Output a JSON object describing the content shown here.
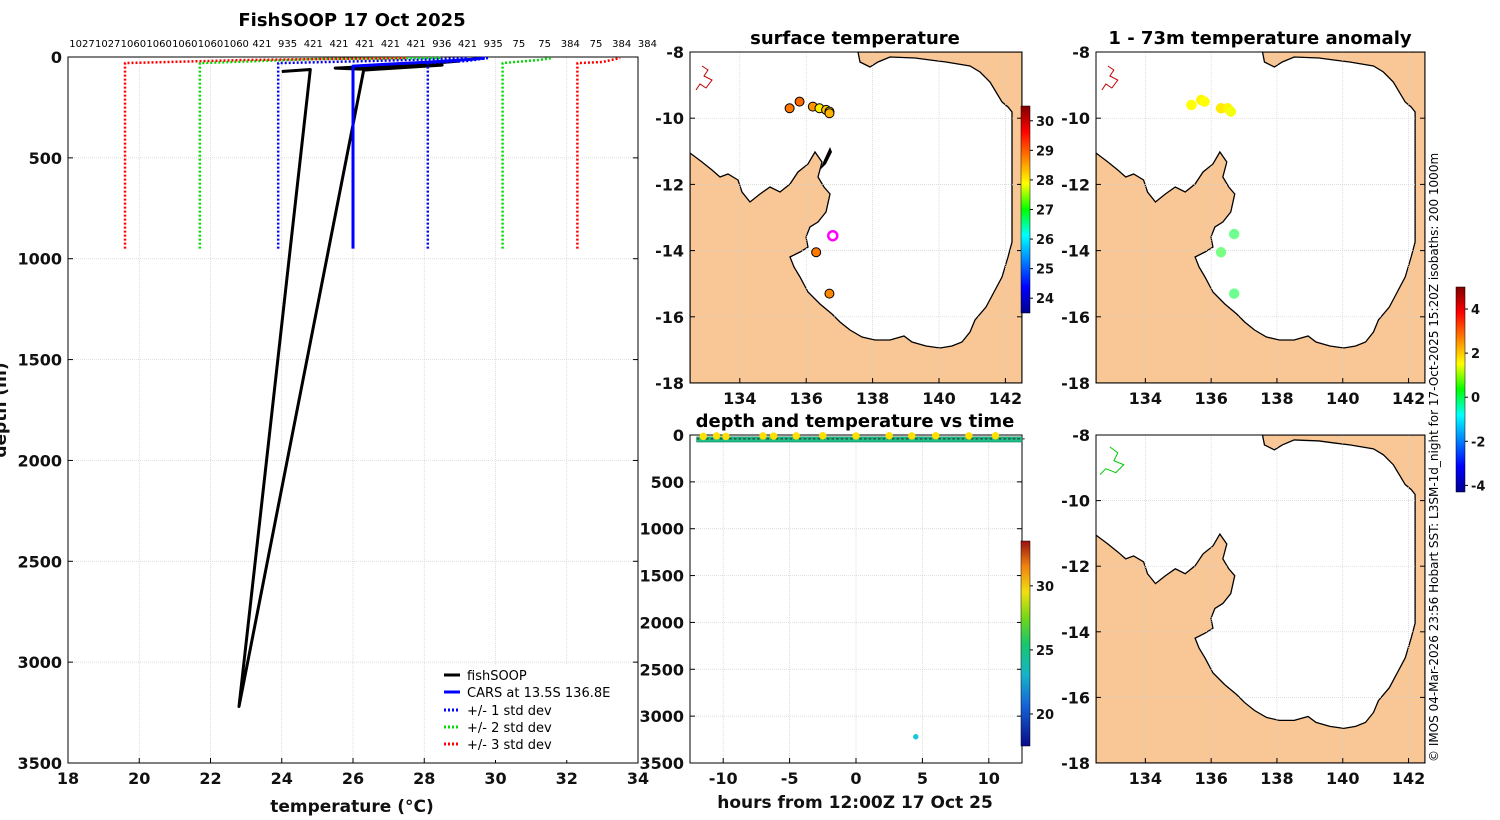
{
  "chart_data": [
    {
      "type": "line",
      "title": "FishSOOP 17 Oct 2025",
      "xlabel": "temperature (°C)",
      "ylabel": "depth (m)",
      "xlim": [
        18,
        34
      ],
      "ylim": [
        0,
        3500
      ],
      "x_ticks": [
        "18",
        "20",
        "22",
        "24",
        "26",
        "28",
        "30",
        "32",
        "34"
      ],
      "y_ticks": [
        "0",
        "500",
        "1000",
        "1500",
        "2000",
        "2500",
        "3000",
        "3500"
      ],
      "top_counts": [
        "1027",
        "1027",
        "1060",
        "1060",
        "1060",
        "1060",
        "1060",
        "421",
        "935",
        "421",
        "421",
        "421",
        "421",
        "421",
        "936",
        "421",
        "935",
        "75",
        "75",
        "384",
        "75",
        "384",
        "384"
      ],
      "legend": {
        "fishsoop": "fishSOOP",
        "cars": "CARS at 13.5S 136.8E",
        "std1": "+/- 1 std dev",
        "std2": "+/- 2 std dev",
        "std3": "+/- 3 std dev"
      },
      "series": [
        {
          "name": "fishSOOP",
          "color": "#000000",
          "points": [
            [
              24.0,
              72
            ],
            [
              24.8,
              62
            ],
            [
              22.8,
              3220
            ],
            [
              26.3,
              65
            ],
            [
              28.5,
              40
            ],
            [
              26.2,
              60
            ],
            [
              25.5,
              55
            ],
            [
              28.3,
              30
            ],
            [
              29.0,
              20
            ]
          ]
        },
        {
          "name": "CARS",
          "color": "#0000ff",
          "points": [
            [
              26.0,
              950
            ],
            [
              26.0,
              45
            ],
            [
              27.0,
              35
            ],
            [
              28.2,
              25
            ],
            [
              29.3,
              12
            ],
            [
              29.7,
              5
            ]
          ]
        },
        {
          "name": "+/- 1 std dev low",
          "color": "#0000ff",
          "points": [
            [
              23.9,
              950
            ],
            [
              23.9,
              30
            ],
            [
              26.5,
              20
            ],
            [
              28.5,
              10
            ],
            [
              29.2,
              5
            ]
          ]
        },
        {
          "name": "+/- 1 std dev high",
          "color": "#0000ff",
          "points": [
            [
              28.1,
              950
            ],
            [
              28.1,
              30
            ],
            [
              29.2,
              20
            ],
            [
              29.6,
              10
            ],
            [
              29.8,
              5
            ]
          ]
        },
        {
          "name": "+/- 2 std dev low",
          "color": "#00dd00",
          "points": [
            [
              21.7,
              950
            ],
            [
              21.7,
              30
            ],
            [
              25.0,
              10
            ],
            [
              28.5,
              5
            ]
          ]
        },
        {
          "name": "+/- 2 std dev high",
          "color": "#00dd00",
          "points": [
            [
              30.2,
              950
            ],
            [
              30.2,
              30
            ],
            [
              31.2,
              15
            ],
            [
              31.6,
              5
            ]
          ]
        },
        {
          "name": "+/- 3 std dev low",
          "color": "#ff0000",
          "points": [
            [
              19.6,
              950
            ],
            [
              19.6,
              30
            ],
            [
              23.0,
              15
            ],
            [
              27.5,
              5
            ]
          ]
        },
        {
          "name": "+/- 3 std dev high",
          "color": "#ff0000",
          "points": [
            [
              32.3,
              950
            ],
            [
              32.3,
              30
            ],
            [
              33.0,
              25
            ],
            [
              33.5,
              5
            ]
          ]
        }
      ]
    },
    {
      "type": "scatter",
      "title": "surface temperature",
      "xlim": [
        132.5,
        142.5
      ],
      "ylim": [
        -18,
        -8
      ],
      "x_ticks": [
        "134",
        "136",
        "138",
        "140",
        "142"
      ],
      "y_ticks": [
        "-8",
        "-10",
        "-12",
        "-14",
        "-16",
        "-18"
      ],
      "colorbar": {
        "min": 23.5,
        "max": 30.5,
        "ticks": [
          "30",
          "29",
          "28",
          "27",
          "26",
          "25",
          "24"
        ]
      },
      "points": [
        {
          "lon": 135.5,
          "lat": -9.7,
          "value": 28.8
        },
        {
          "lon": 135.8,
          "lat": -9.5,
          "value": 28.9
        },
        {
          "lon": 136.2,
          "lat": -9.65,
          "value": 28.6
        },
        {
          "lon": 136.4,
          "lat": -9.7,
          "value": 28.0
        },
        {
          "lon": 136.6,
          "lat": -9.75,
          "value": 28.3
        },
        {
          "lon": 136.7,
          "lat": -9.8,
          "value": 28.1
        },
        {
          "lon": 136.7,
          "lat": -9.85,
          "value": 28.4
        },
        {
          "lon": 136.8,
          "lat": -13.55,
          "value": null
        },
        {
          "lon": 136.3,
          "lat": -14.05,
          "value": 28.8
        },
        {
          "lon": 136.7,
          "lat": -15.3,
          "value": 28.7
        }
      ]
    },
    {
      "type": "scatter",
      "title": "1 - 73m temperature anomaly",
      "xlim": [
        132.5,
        142.5
      ],
      "ylim": [
        -18,
        -8
      ],
      "x_ticks": [
        "134",
        "136",
        "138",
        "140",
        "142"
      ],
      "y_ticks": [
        "-8",
        "-10",
        "-12",
        "-14",
        "-16",
        "-18"
      ],
      "colorbar": {
        "min": -4.3,
        "max": 5.0,
        "ticks": [
          "4",
          "2",
          "0",
          "-2",
          "-4"
        ]
      },
      "points": [
        {
          "lon": 135.4,
          "lat": -9.6,
          "value": 1.5
        },
        {
          "lon": 135.7,
          "lat": -9.45,
          "value": 1.6
        },
        {
          "lon": 135.8,
          "lat": -9.5,
          "value": 1.5
        },
        {
          "lon": 136.3,
          "lat": -9.7,
          "value": 1.7
        },
        {
          "lon": 136.5,
          "lat": -9.7,
          "value": 1.6
        },
        {
          "lon": 136.6,
          "lat": -9.8,
          "value": 1.4
        },
        {
          "lon": 136.7,
          "lat": -13.5,
          "value": 0.2
        },
        {
          "lon": 136.3,
          "lat": -14.05,
          "value": 0.3
        },
        {
          "lon": 136.7,
          "lat": -15.3,
          "value": 0.2
        }
      ]
    },
    {
      "type": "scatter",
      "title": "depth and temperature vs time",
      "xlabel": "hours from 12:00Z 17 Oct 25",
      "xlim": [
        -12.5,
        12.5
      ],
      "ylim": [
        0,
        3500
      ],
      "x_ticks": [
        "-10",
        "-5",
        "0",
        "5",
        "10"
      ],
      "y_ticks": [
        "0",
        "500",
        "1000",
        "1500",
        "2000",
        "2500",
        "3000",
        "3500"
      ],
      "colorbar": {
        "min": 17.5,
        "max": 33.5,
        "ticks": [
          "30",
          "25",
          "20"
        ]
      },
      "band": {
        "t_start": -12,
        "t_end": 12.5,
        "depth_min": 20,
        "depth_max": 75,
        "value": 24.5
      },
      "points": [
        {
          "t": -11.5,
          "depth": 15,
          "value": 29.0
        },
        {
          "t": -10.5,
          "depth": 10,
          "value": 29.5
        },
        {
          "t": -9.8,
          "depth": 15,
          "value": 29.2
        },
        {
          "t": -7.0,
          "depth": 10,
          "value": 29.0
        },
        {
          "t": -6.2,
          "depth": 12,
          "value": 28.8
        },
        {
          "t": -4.5,
          "depth": 10,
          "value": 29.3
        },
        {
          "t": -2.5,
          "depth": 8,
          "value": 29.1
        },
        {
          "t": 0.0,
          "depth": 10,
          "value": 29.0
        },
        {
          "t": 2.5,
          "depth": 8,
          "value": 29.2
        },
        {
          "t": 4.2,
          "depth": 10,
          "value": 29.0
        },
        {
          "t": 6.0,
          "depth": 8,
          "value": 29.1
        },
        {
          "t": 8.5,
          "depth": 10,
          "value": 29.0
        },
        {
          "t": 10.5,
          "depth": 8,
          "value": 28.9
        },
        {
          "t": 4.5,
          "depth": 3220,
          "value": 22.8
        }
      ]
    },
    {
      "type": "scatter",
      "title": "",
      "xlim": [
        132.5,
        142.5
      ],
      "ylim": [
        -18,
        -8
      ],
      "x_ticks": [
        "134",
        "136",
        "138",
        "140",
        "142"
      ],
      "y_ticks": [
        "-8",
        "-10",
        "-12",
        "-14",
        "-16",
        "-18"
      ],
      "points": []
    }
  ],
  "side_caption": "© IMOS 04-Mar-2026 23:56 Hobart SST: L3SM-1d_night for 17-Oct-2025 15:20Z isobaths: 200  1000m"
}
